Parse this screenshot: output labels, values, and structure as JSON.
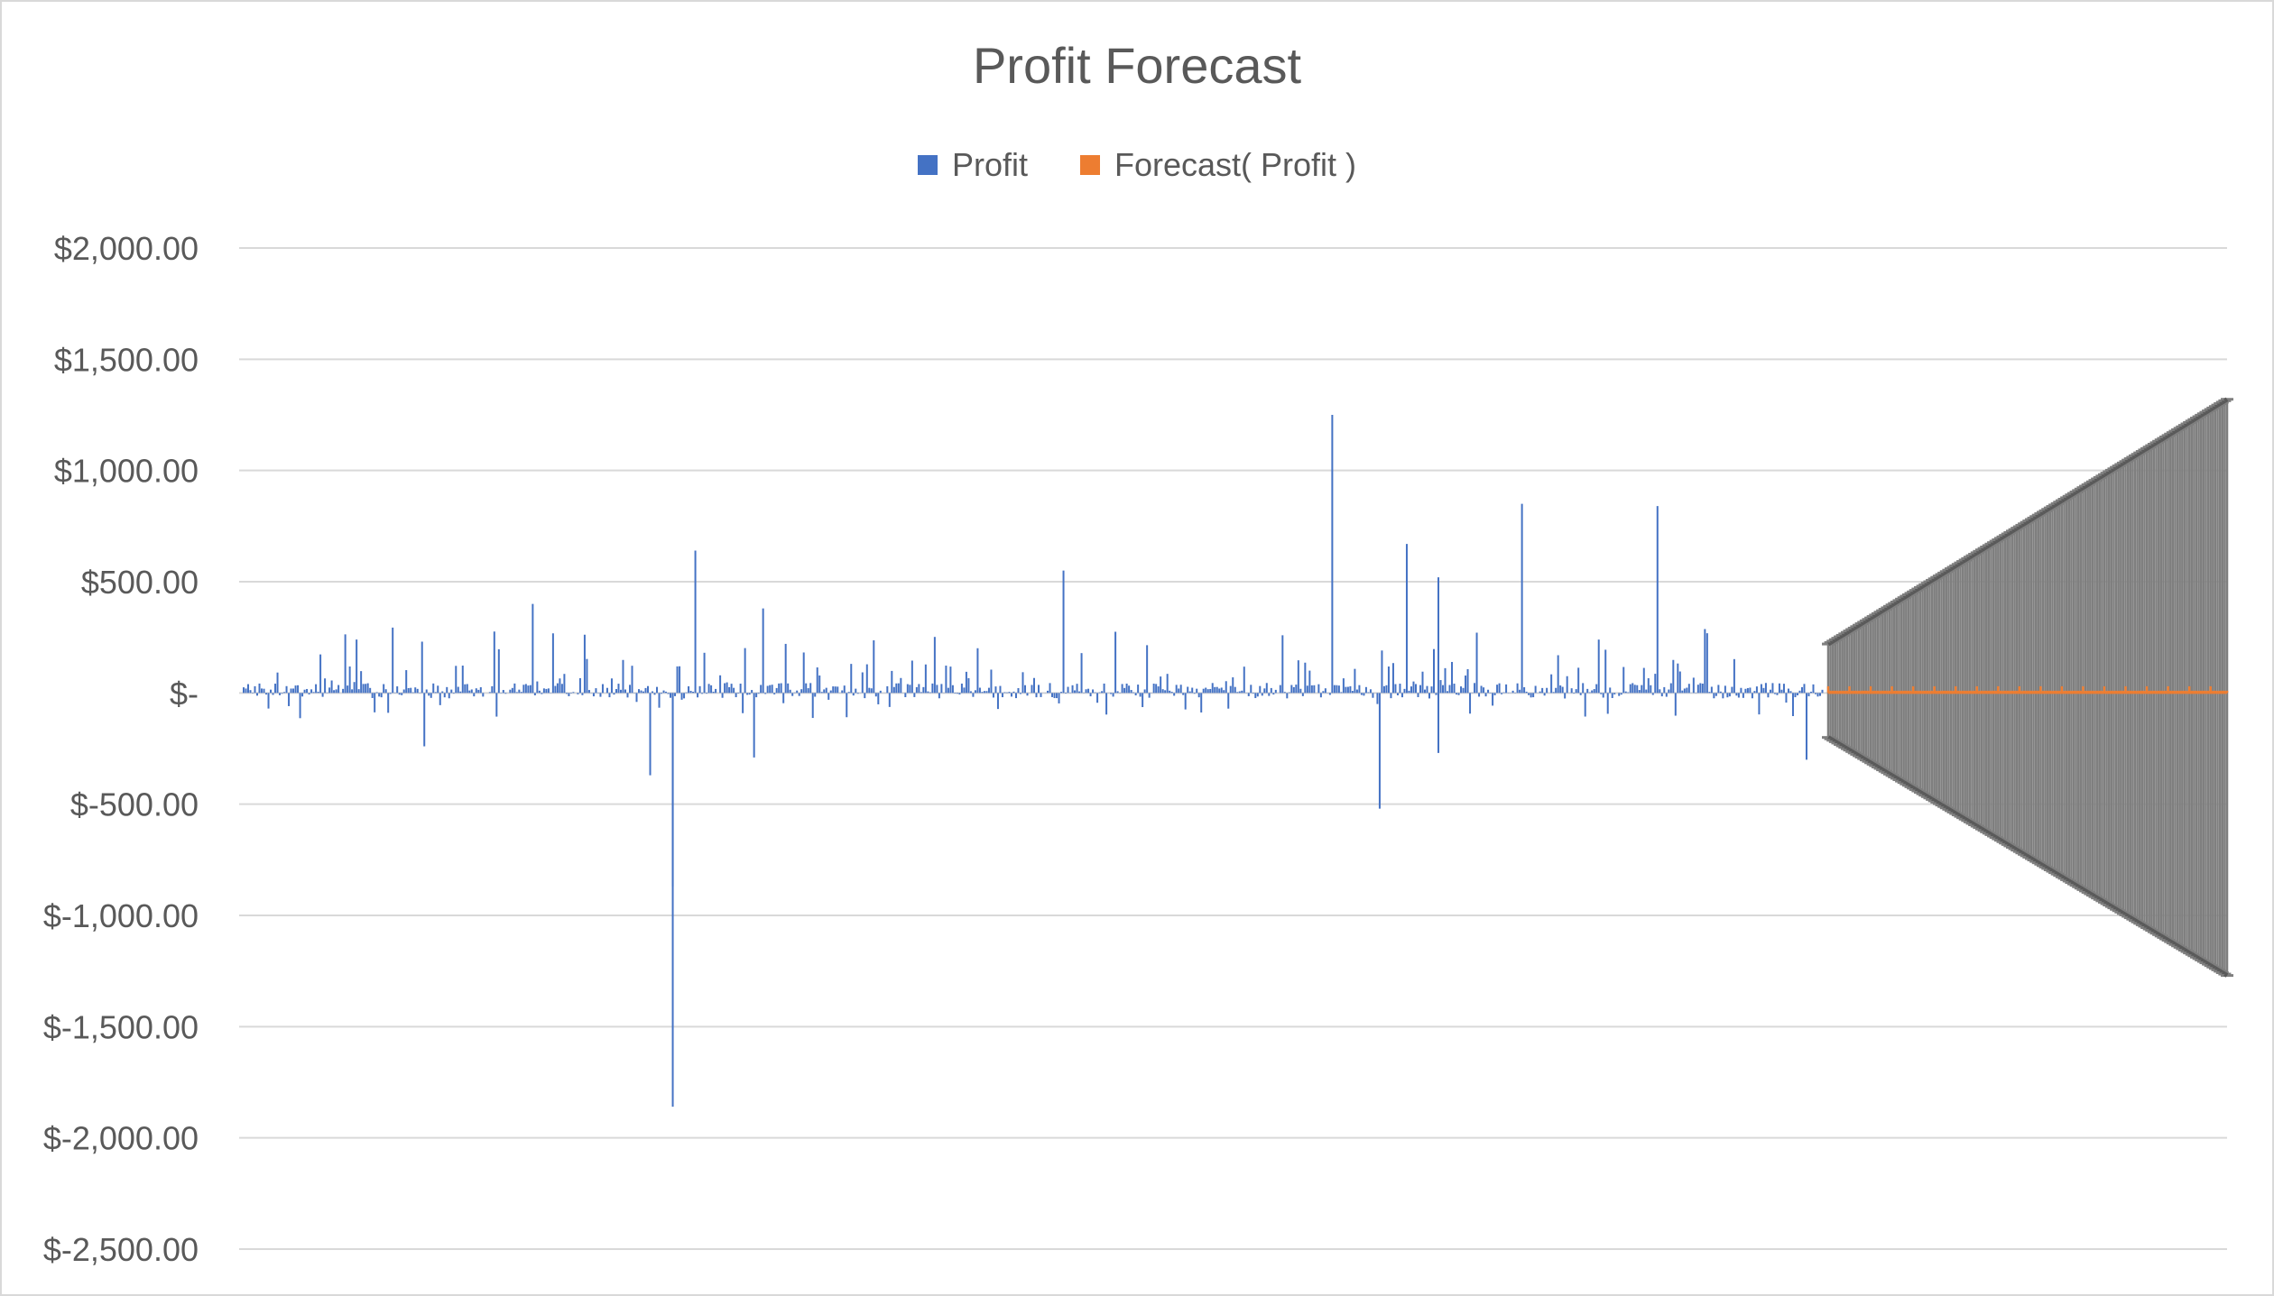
{
  "chart_data": {
    "type": "bar",
    "title": "Profit Forecast",
    "xlabel": "",
    "ylabel": "",
    "ylim": [
      -2500,
      2000
    ],
    "ytick_values": [
      2000,
      1500,
      1000,
      500,
      0,
      -500,
      -1000,
      -1500,
      -2000,
      -2500
    ],
    "ytick_labels": [
      "$2,000.00",
      "$1,500.00",
      "$1,000.00",
      "$500.00",
      "$-",
      "$-500.00",
      "$-1,000.00",
      "$-1,500.00",
      "$-2,000.00",
      "$-2,500.00"
    ],
    "grid": true,
    "legend_position": "top",
    "colors": {
      "profit": "#4472C4",
      "forecast": "#ED7D31",
      "error_bar": "#7F7F7F",
      "grid": "#d9d9d9",
      "text": "#595959"
    },
    "series": [
      {
        "name": "Profit",
        "approx_point_count": 700,
        "notable_values": [
          {
            "index": 190,
            "value": -1860
          },
          {
            "index": 190,
            "value": -870
          },
          {
            "index": 180,
            "value": -370
          },
          {
            "index": 200,
            "value": 640
          },
          {
            "index": 363,
            "value": 550
          },
          {
            "index": 482,
            "value": 1250
          },
          {
            "index": 503,
            "value": -520
          },
          {
            "index": 515,
            "value": 670
          },
          {
            "index": 529,
            "value": 520
          },
          {
            "index": 529,
            "value": -270
          },
          {
            "index": 566,
            "value": 850
          },
          {
            "index": 626,
            "value": 840
          },
          {
            "index": 692,
            "value": -300
          },
          {
            "index": 80,
            "value": -240
          },
          {
            "index": 128,
            "value": 400
          },
          {
            "index": 230,
            "value": 380
          },
          {
            "index": 226,
            "value": -290
          }
        ]
      },
      {
        "name": "Forecast( Profit )",
        "approx_point_count": 170,
        "forecast_value": 10,
        "error_band_start": 220,
        "error_band_end": 1320,
        "error_band_lower_start": -200,
        "error_band_lower_end": -1270
      }
    ]
  }
}
